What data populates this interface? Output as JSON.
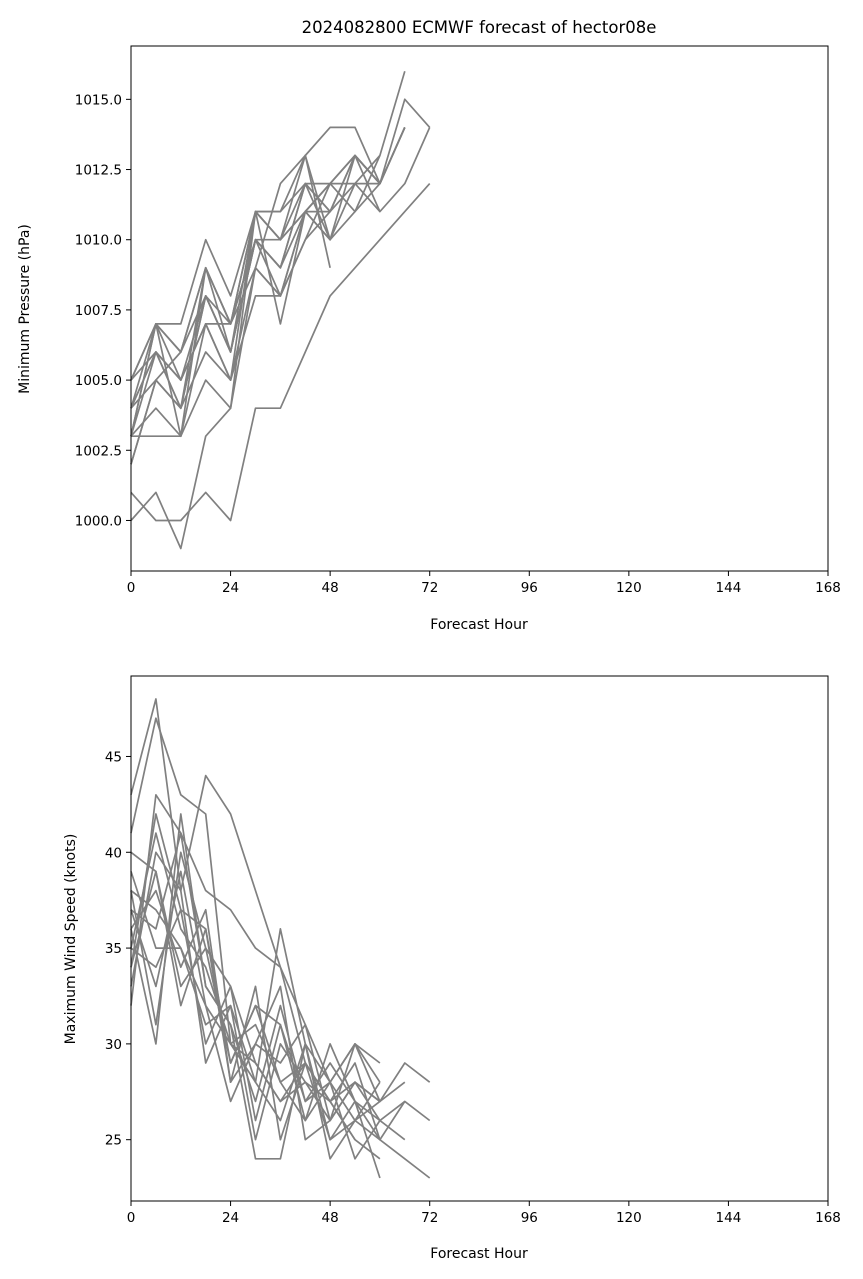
{
  "title": "2024082800 ECMWF forecast of hector08e",
  "colors": {
    "member_line": "#808080",
    "axes": "#000000",
    "background": "#ffffff"
  },
  "chart_data": [
    {
      "type": "line",
      "title": "2024082800 ECMWF forecast of hector08e",
      "xlabel": "Forecast Hour",
      "ylabel": "Minimum Pressure (hPa)",
      "xlim": [
        0,
        168
      ],
      "ylim": [
        998.2,
        1016.9
      ],
      "x_ticks": [
        0,
        24,
        48,
        72,
        96,
        120,
        144,
        168
      ],
      "x_tick_labels": [
        "0",
        "24",
        "48",
        "72",
        "96",
        "120",
        "144",
        "168"
      ],
      "y_ticks": [
        1000.0,
        1002.5,
        1005.0,
        1007.5,
        1010.0,
        1012.5,
        1015.0
      ],
      "y_tick_labels": [
        "1000.0",
        "1002.5",
        "1005.0",
        "1007.5",
        "1010.0",
        "1012.5",
        "1015.0"
      ],
      "grid": false,
      "legend": "none",
      "x": [
        0,
        6,
        12,
        18,
        24,
        30,
        36,
        42,
        48,
        54,
        60,
        66,
        72
      ],
      "series": [
        {
          "values": [
            1000,
            1001,
            999,
            1003,
            1004,
            1011,
            1011,
            1013,
            1010,
            1013,
            1012,
            1014,
            null
          ]
        },
        {
          "values": [
            1001,
            1000,
            1000,
            1001,
            1000,
            1004,
            1004,
            1006,
            1008,
            1009,
            1010,
            1011,
            1012
          ]
        },
        {
          "values": [
            1005,
            1007,
            1007,
            1010,
            1008,
            1011,
            1011,
            1012,
            1012,
            1013,
            1012,
            1014,
            null
          ]
        },
        {
          "values": [
            1003,
            1007,
            1003,
            1009,
            1007,
            1011,
            1010,
            1013,
            1009,
            null,
            null,
            null,
            null
          ]
        },
        {
          "values": [
            1004,
            1006,
            1004,
            1008,
            1006,
            1010,
            1008,
            1011,
            1012,
            1012,
            1013,
            1016,
            null
          ]
        },
        {
          "values": [
            1003,
            1004,
            1003,
            1007,
            1005,
            1008,
            1008,
            1010,
            1012,
            1013,
            1012,
            1015,
            1014
          ]
        },
        {
          "values": [
            1002,
            1005,
            1006,
            1009,
            1007,
            1009,
            1012,
            1013,
            1014,
            1014,
            1012,
            1014,
            null
          ]
        },
        {
          "values": [
            1004,
            1007,
            1005,
            1008,
            1006,
            1010,
            1009,
            1012,
            1011,
            1013,
            1011,
            1012,
            1014
          ]
        },
        {
          "values": [
            1003,
            1006,
            1004,
            1006,
            1005,
            1011,
            1007,
            1011,
            1010,
            1012,
            1012,
            1014,
            null
          ]
        },
        {
          "values": [
            1005,
            1007,
            1006,
            1009,
            1007,
            1011,
            1010,
            1012,
            1011,
            1012,
            1011,
            null,
            null
          ]
        },
        {
          "values": [
            1002,
            1005,
            1004,
            1008,
            1006,
            1010,
            1009,
            1011,
            1010,
            1011,
            1012,
            null,
            null
          ]
        },
        {
          "values": [
            1004,
            1006,
            1005,
            1007,
            1005,
            1009,
            1008,
            1010,
            1011,
            1013,
            1012,
            null,
            null
          ]
        },
        {
          "values": [
            1003,
            1003,
            1003,
            1005,
            1004,
            1009,
            1008,
            1011,
            1012,
            1011,
            1013,
            null,
            null
          ]
        },
        {
          "values": [
            1003,
            1007,
            1006,
            1008,
            1007,
            1010,
            1009,
            1012,
            1010,
            null,
            null,
            null,
            null
          ]
        },
        {
          "values": [
            1004,
            1005,
            1004,
            1009,
            1006,
            1011,
            1010,
            1011,
            1012,
            null,
            null,
            null,
            null
          ]
        },
        {
          "values": [
            1005,
            1006,
            1005,
            1007,
            1007,
            1010,
            1010,
            1011,
            1011,
            null,
            null,
            null,
            null
          ]
        }
      ]
    },
    {
      "type": "line",
      "title": "",
      "xlabel": "Forecast Hour",
      "ylabel": "Maximum Wind Speed (knots)",
      "xlim": [
        0,
        168
      ],
      "ylim": [
        21.8,
        49.2
      ],
      "x_ticks": [
        0,
        24,
        48,
        72,
        96,
        120,
        144,
        168
      ],
      "x_tick_labels": [
        "0",
        "24",
        "48",
        "72",
        "96",
        "120",
        "144",
        "168"
      ],
      "y_ticks": [
        25,
        30,
        35,
        40,
        45
      ],
      "y_tick_labels": [
        "25",
        "30",
        "35",
        "40",
        "45"
      ],
      "grid": false,
      "legend": "none",
      "x": [
        0,
        6,
        12,
        18,
        24,
        30,
        36,
        42,
        48,
        54,
        60,
        66,
        72
      ],
      "series": [
        {
          "values": [
            43,
            48,
            38,
            44,
            42,
            38,
            34,
            31,
            28,
            30,
            29,
            null,
            null
          ]
        },
        {
          "values": [
            41,
            47,
            43,
            42,
            30,
            28,
            36,
            30,
            28,
            30,
            27,
            29,
            28
          ]
        },
        {
          "values": [
            32,
            43,
            41,
            38,
            37,
            35,
            34,
            29,
            27,
            28,
            26,
            27,
            26
          ]
        },
        {
          "values": [
            36,
            30,
            42,
            33,
            31,
            24,
            24,
            30,
            24,
            26,
            25,
            24,
            23
          ]
        },
        {
          "values": [
            38,
            31,
            40,
            35,
            33,
            29,
            27,
            29,
            25,
            27,
            23,
            null,
            null
          ]
        },
        {
          "values": [
            34,
            42,
            37,
            36,
            29,
            32,
            31,
            27,
            28,
            24,
            26,
            25,
            null
          ]
        },
        {
          "values": [
            37,
            33,
            39,
            32,
            27,
            30,
            33,
            25,
            26,
            28,
            27,
            28,
            null
          ]
        },
        {
          "values": [
            35,
            41,
            36,
            34,
            30,
            31,
            28,
            26,
            30,
            27,
            25,
            27,
            null
          ]
        },
        {
          "values": [
            39,
            35,
            35,
            31,
            32,
            25,
            30,
            28,
            27,
            25,
            24,
            null,
            null
          ]
        },
        {
          "values": [
            36,
            38,
            34,
            37,
            28,
            30,
            29,
            31,
            26,
            28,
            27,
            null,
            null
          ]
        },
        {
          "values": [
            33,
            40,
            38,
            29,
            32,
            28,
            26,
            30,
            25,
            26,
            28,
            null,
            null
          ]
        },
        {
          "values": [
            37,
            36,
            41,
            33,
            31,
            27,
            32,
            27,
            29,
            27,
            26,
            null,
            null
          ]
        },
        {
          "values": [
            40,
            39,
            33,
            35,
            29,
            32,
            28,
            29,
            27,
            29,
            25,
            null,
            null
          ]
        },
        {
          "values": [
            35,
            34,
            37,
            30,
            33,
            26,
            31,
            26,
            28,
            26,
            27,
            null,
            null
          ]
        },
        {
          "values": [
            38,
            37,
            35,
            32,
            30,
            29,
            27,
            28,
            26,
            30,
            28,
            null,
            null
          ]
        },
        {
          "values": [
            34,
            39,
            32,
            36,
            28,
            33,
            25,
            29,
            27,
            25,
            null,
            null,
            null
          ]
        }
      ]
    }
  ]
}
